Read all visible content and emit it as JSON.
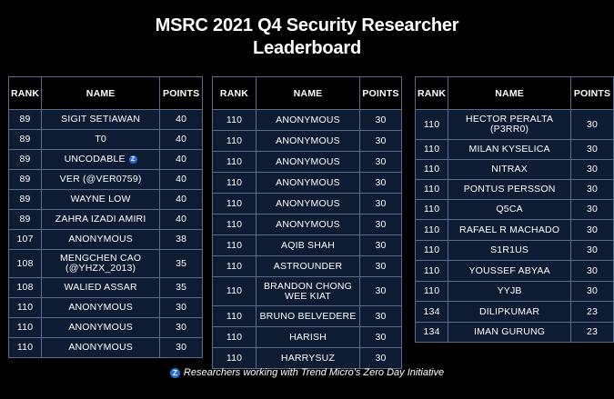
{
  "title_line1": "MSRC 2021 Q4 Security Researcher",
  "title_line2": "Leaderboard",
  "headers": {
    "rank": "RANK",
    "name": "NAME",
    "points": "POINTS"
  },
  "zdi_icon": "Z",
  "footer": "Researchers working with Trend Micro's Zero Day Initiative",
  "tables": [
    {
      "rows": [
        {
          "rank": "89",
          "name": "SIGIT SETIAWAN",
          "points": "40"
        },
        {
          "rank": "89",
          "name": "T0",
          "points": "40"
        },
        {
          "rank": "89",
          "name": "UNCODABLE",
          "points": "40",
          "zdi": true
        },
        {
          "rank": "89",
          "name": "VER (@VER0759)",
          "points": "40"
        },
        {
          "rank": "89",
          "name": "WAYNE LOW",
          "points": "40"
        },
        {
          "rank": "89",
          "name": "ZAHRA IZADI AMIRI",
          "points": "40"
        },
        {
          "rank": "107",
          "name": "ANONYMOUS",
          "points": "38"
        },
        {
          "rank": "108",
          "name": "MENGCHEN CAO (@YHZX_2013)",
          "points": "35"
        },
        {
          "rank": "108",
          "name": "WALIED ASSAR",
          "points": "35"
        },
        {
          "rank": "110",
          "name": "ANONYMOUS",
          "points": "30"
        },
        {
          "rank": "110",
          "name": "ANONYMOUS",
          "points": "30"
        },
        {
          "rank": "110",
          "name": "ANONYMOUS",
          "points": "30"
        }
      ]
    },
    {
      "rows": [
        {
          "rank": "110",
          "name": "ANONYMOUS",
          "points": "30"
        },
        {
          "rank": "110",
          "name": "ANONYMOUS",
          "points": "30"
        },
        {
          "rank": "110",
          "name": "ANONYMOUS",
          "points": "30"
        },
        {
          "rank": "110",
          "name": "ANONYMOUS",
          "points": "30"
        },
        {
          "rank": "110",
          "name": "ANONYMOUS",
          "points": "30"
        },
        {
          "rank": "110",
          "name": "ANONYMOUS",
          "points": "30"
        },
        {
          "rank": "110",
          "name": "AQIB SHAH",
          "points": "30"
        },
        {
          "rank": "110",
          "name": "ASTROUNDER",
          "points": "30"
        },
        {
          "rank": "110",
          "name": "BRANDON CHONG WEE KIAT",
          "points": "30"
        },
        {
          "rank": "110",
          "name": "BRUNO BELVEDERE",
          "points": "30"
        },
        {
          "rank": "110",
          "name": "HARISH",
          "points": "30"
        },
        {
          "rank": "110",
          "name": "HARRYSUZ",
          "points": "30"
        }
      ]
    },
    {
      "rows": [
        {
          "rank": "110",
          "name": "HECTOR PERALTA (P3RR0)",
          "points": "30"
        },
        {
          "rank": "110",
          "name": "MILAN KYSELICA",
          "points": "30"
        },
        {
          "rank": "110",
          "name": "NITRAX",
          "points": "30"
        },
        {
          "rank": "110",
          "name": "PONTUS PERSSON",
          "points": "30"
        },
        {
          "rank": "110",
          "name": "Q5CA",
          "points": "30"
        },
        {
          "rank": "110",
          "name": "RAFAEL R MACHADO",
          "points": "30"
        },
        {
          "rank": "110",
          "name": "S1R1US",
          "points": "30"
        },
        {
          "rank": "110",
          "name": "YOUSSEF ABYAA",
          "points": "30"
        },
        {
          "rank": "110",
          "name": "YYJB",
          "points": "30"
        },
        {
          "rank": "134",
          "name": "DILIPKUMAR",
          "points": "23"
        },
        {
          "rank": "134",
          "name": "IMAN GURUNG",
          "points": "23"
        }
      ]
    }
  ]
}
